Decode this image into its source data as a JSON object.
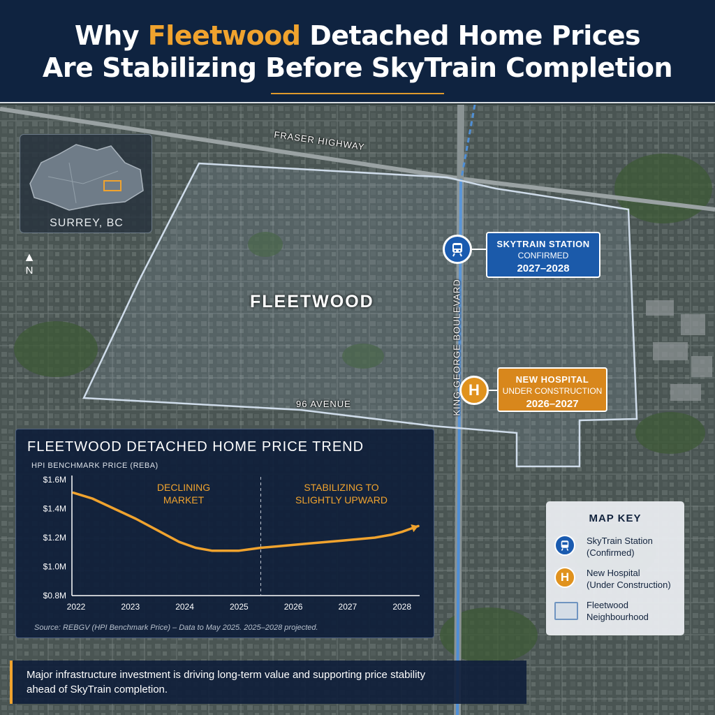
{
  "header": {
    "title_prefix": "Why ",
    "title_accent": "Fleetwood",
    "title_rest": " Detached Home Prices",
    "title_line2": "Are Stabilizing Before SkyTrain Completion"
  },
  "map": {
    "road_fraser": "FRASER HIGHWAY",
    "road_96": "96 AVENUE",
    "road_kg": "KING GEORGE BOULEVARD",
    "area_label": "FLEETWOOD",
    "inset_label": "SURREY, BC",
    "north_label": "N",
    "skytrain_callout": {
      "line1": "SKYTRAIN STATION",
      "line2": "CONFIRMED",
      "line3": "2027–2028"
    },
    "hospital_callout": {
      "line1": "NEW HOSPITAL",
      "line2": "UNDER CONSTRUCTION",
      "line3": "2026–2027"
    },
    "hospital_marker_letter": "H",
    "colors": {
      "skytrain": "#1a5bb0",
      "hospital": "#e0921e",
      "accent": "#f0a32e",
      "boundary": "#cfdcea"
    }
  },
  "chart": {
    "title": "FLEETWOOD DETACHED HOME PRICE TREND",
    "subtitle": "HPI BENCHMARK PRICE (REBA)",
    "annotation_left": [
      "DECLINING",
      "MARKET"
    ],
    "annotation_right": [
      "STABILIZING TO",
      "SLIGHTLY UPWARD"
    ],
    "source": "Source: REBGV (HPI Benchmark Price) – Data to May 2025. 2025–2028 projected."
  },
  "chart_data": {
    "type": "line",
    "title": "FLEETWOOD DETACHED HOME PRICE TREND",
    "ylabel": "HPI BENCHMARK PRICE (REBA)",
    "xlabel": "",
    "x_ticks": [
      "2022",
      "2023",
      "2024",
      "2025",
      "2026",
      "2027",
      "2028"
    ],
    "y_ticks": [
      "$0.8M",
      "$1.0M",
      "$1.2M",
      "$1.4M",
      "$1.6M"
    ],
    "ylim": [
      0.8,
      1.6
    ],
    "xlim": [
      2022,
      2028.3
    ],
    "divider_x": 2025.4,
    "series": [
      {
        "values_x": [
          2021.95,
          2022.3,
          2022.7,
          2023.1,
          2023.5,
          2023.9,
          2024.2,
          2024.5,
          2024.8,
          2025.0,
          2025.2,
          2025.4,
          2025.7,
          2026.0,
          2026.3,
          2026.6,
          2026.9,
          2027.2,
          2027.5,
          2027.8,
          2028.0,
          2028.3
        ],
        "values_y": [
          1.51,
          1.47,
          1.4,
          1.33,
          1.25,
          1.17,
          1.13,
          1.11,
          1.11,
          1.11,
          1.12,
          1.13,
          1.14,
          1.15,
          1.16,
          1.17,
          1.18,
          1.19,
          1.2,
          1.22,
          1.24,
          1.28
        ]
      }
    ],
    "grid": false,
    "line_color": "#f0a32e"
  },
  "key": {
    "title": "MAP KEY",
    "items": [
      {
        "label_line1": "SkyTrain Station",
        "label_line2": "(Confirmed)"
      },
      {
        "label_line1": "New Hospital",
        "label_line2": "(Under Construction)"
      },
      {
        "label_line1": "Fleetwood",
        "label_line2": "Neighbourhood"
      }
    ]
  },
  "footer": {
    "line1": "Major infrastructure investment is driving long-term value and supporting price stability",
    "line2": "ahead of SkyTrain completion."
  }
}
